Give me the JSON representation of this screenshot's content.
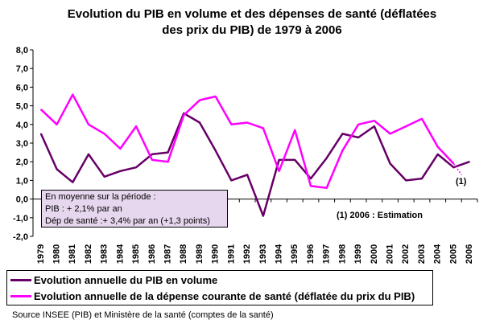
{
  "chart_data": {
    "type": "line",
    "title_line1": "Evolution du PIB en volume et des dépenses de santé (déflatées",
    "title_line2": "des prix du PIB) de 1979 à 2006",
    "x": [
      "1979",
      "1980",
      "1981",
      "1982",
      "1983",
      "1984",
      "1985",
      "1986",
      "1987",
      "1988",
      "1989",
      "1990",
      "1991",
      "1992",
      "1993",
      "1994",
      "1995",
      "1996",
      "1997",
      "1998",
      "1999",
      "2000",
      "2001",
      "2002",
      "2003",
      "2004",
      "2005",
      "2006"
    ],
    "ylim": [
      -2.0,
      8.0
    ],
    "yticks": [
      "-2,0",
      "-1,0",
      "0,0",
      "1,0",
      "2,0",
      "3,0",
      "4,0",
      "5,0",
      "6,0",
      "7,0",
      "8,0"
    ],
    "grid": false,
    "series": [
      {
        "name": "Evolution annuelle du PIB en volume",
        "color": "#660066",
        "values": [
          3.5,
          1.6,
          0.9,
          2.4,
          1.2,
          1.5,
          1.7,
          2.4,
          2.5,
          4.6,
          4.1,
          2.6,
          1.0,
          1.3,
          -0.9,
          2.1,
          2.1,
          1.1,
          2.2,
          3.5,
          3.3,
          3.9,
          1.9,
          1.0,
          1.1,
          2.4,
          1.7,
          2.0
        ],
        "dashed_last_segment": false
      },
      {
        "name": "Evolution annuelle de la dépense courante de santé (déflatée du prix du PIB)",
        "color": "#ff00ff",
        "values": [
          4.8,
          4.0,
          5.6,
          4.0,
          3.5,
          2.7,
          3.9,
          2.1,
          2.0,
          4.5,
          5.3,
          5.5,
          4.0,
          4.1,
          3.8,
          1.5,
          3.7,
          0.7,
          0.6,
          2.6,
          4.0,
          4.2,
          3.5,
          3.9,
          4.3,
          2.8,
          1.9,
          null
        ],
        "dashed_last_segment": true
      }
    ],
    "annotations": {
      "box_line1": "En moyenne sur la période :",
      "box_line2": "PIB : + 2,1% par an",
      "box_line3": "Dép de santé :+ 3,4% par an (+1,3 points)",
      "note": "(1) 2006 : Estimation",
      "marker": "(1)"
    },
    "source": "Source INSEE (PIB) et Ministère de la santé (comptes de la santé)"
  }
}
